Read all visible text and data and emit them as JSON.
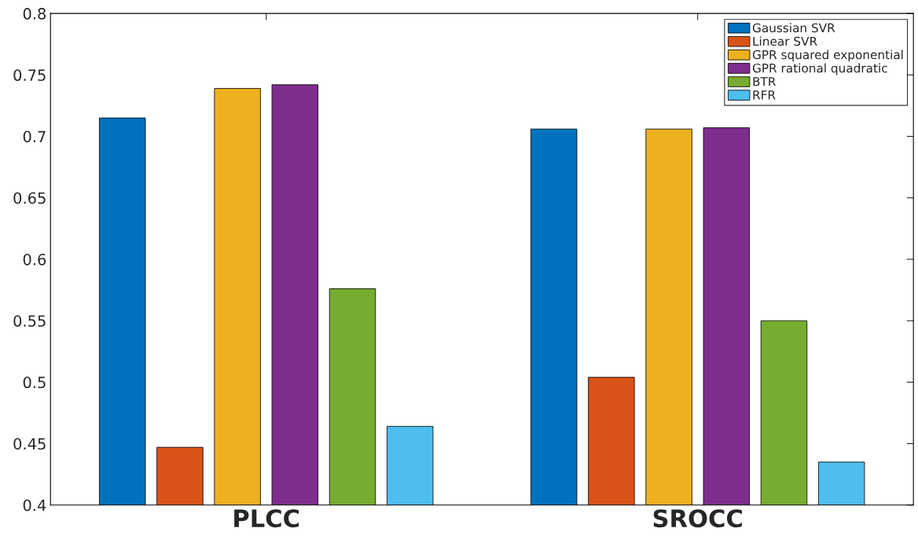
{
  "chart_data": {
    "type": "bar",
    "categories": [
      "PLCC",
      "SROCC"
    ],
    "series": [
      {
        "name": "Gaussian SVR",
        "color": "#0072bd",
        "values": [
          0.715,
          0.706
        ]
      },
      {
        "name": "Linear SVR",
        "color": "#d95319",
        "values": [
          0.447,
          0.504
        ]
      },
      {
        "name": "GPR squared exponential",
        "color": "#edb120",
        "values": [
          0.739,
          0.706
        ]
      },
      {
        "name": "GPR rational quadratic",
        "color": "#7e2f8e",
        "values": [
          0.742,
          0.707
        ]
      },
      {
        "name": "BTR",
        "color": "#77ac30",
        "values": [
          0.576,
          0.55
        ]
      },
      {
        "name": "RFR",
        "color": "#4dbeee",
        "values": [
          0.464,
          0.435
        ]
      }
    ],
    "ylim": [
      0.4,
      0.8
    ],
    "yticks": [
      0.4,
      0.45,
      0.5,
      0.55,
      0.6,
      0.65,
      0.7,
      0.75,
      0.8
    ],
    "grid": false,
    "legend": "top right"
  }
}
